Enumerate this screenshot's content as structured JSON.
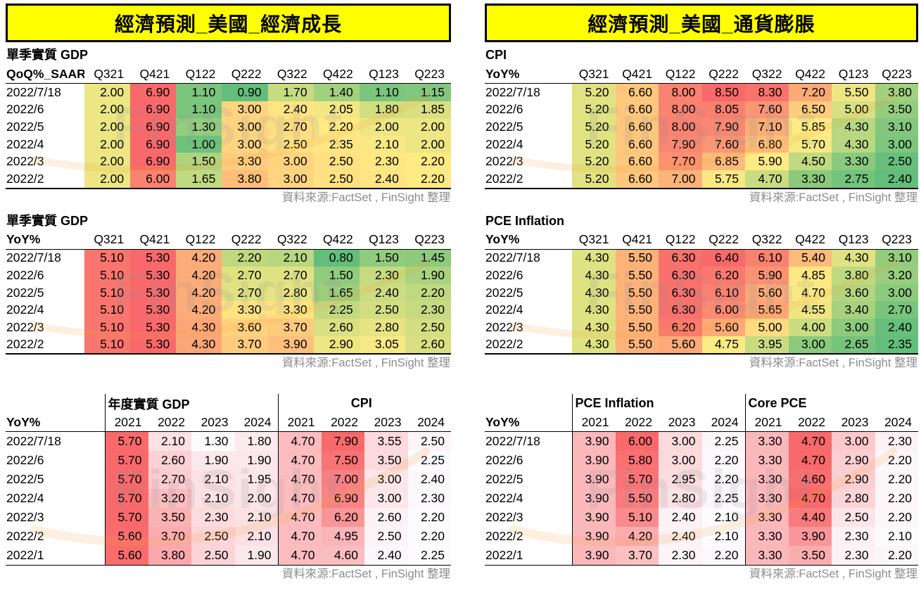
{
  "banner_left": "經濟預測_美國_經濟成長",
  "banner_right": "經濟預測_美國_通貨膨脹",
  "source_note": "資料來源:FactSet , FinSight 整理",
  "watermark_text": "FinSight",
  "colors": {
    "banner_bg": "#FFFF00",
    "banner_border": "#000000",
    "heat3_min_green": "#63BE7B",
    "heat3_mid_yellow": "#FFEB84",
    "heat3_max_red": "#F8696B",
    "heat2_min_white": "#FCFCFF",
    "heat2_max_red": "#F8696B",
    "source_text": "#8C8C8C",
    "watermark_arc": "#F2A33C"
  },
  "quarter_columns": [
    "Q321",
    "Q421",
    "Q122",
    "Q222",
    "Q322",
    "Q422",
    "Q123",
    "Q223"
  ],
  "year_columns": [
    "2021",
    "2022",
    "2023",
    "2024"
  ],
  "quarterly_tables": [
    {
      "id": "gdp-qoq",
      "panel": "left",
      "title": "單季實質 GDP",
      "unit_label": "QoQ%_SAAR",
      "columns": [
        "Q321",
        "Q421",
        "Q122",
        "Q222",
        "Q322",
        "Q422",
        "Q123",
        "Q223"
      ],
      "rows": [
        {
          "label": "2022/7/18",
          "values": [
            "2.00",
            "6.90",
            "1.10",
            "0.90",
            "1.70",
            "1.40",
            "1.10",
            "1.15"
          ]
        },
        {
          "label": "2022/6",
          "values": [
            "2.00",
            "6.90",
            "1.10",
            "3.00",
            "2.40",
            "2.05",
            "1.80",
            "1.85"
          ]
        },
        {
          "label": "2022/5",
          "values": [
            "2.00",
            "6.90",
            "1.30",
            "3.00",
            "2.70",
            "2.20",
            "2.00",
            "2.00"
          ]
        },
        {
          "label": "2022/4",
          "values": [
            "2.00",
            "6.90",
            "1.00",
            "3.00",
            "2.50",
            "2.35",
            "2.10",
            "2.00"
          ]
        },
        {
          "label": "2022/3",
          "values": [
            "2.00",
            "6.90",
            "1.50",
            "3.30",
            "3.00",
            "2.50",
            "2.30",
            "2.20"
          ]
        },
        {
          "label": "2022/2",
          "values": [
            "2.00",
            "6.00",
            "1.65",
            "3.80",
            "3.00",
            "2.50",
            "2.40",
            "2.20"
          ]
        }
      ]
    },
    {
      "id": "gdp-yoy",
      "panel": "left",
      "title": "單季實質 GDP",
      "unit_label": "YoY%",
      "columns": [
        "Q321",
        "Q421",
        "Q122",
        "Q222",
        "Q322",
        "Q422",
        "Q123",
        "Q223"
      ],
      "rows": [
        {
          "label": "2022/7/18",
          "values": [
            "5.10",
            "5.30",
            "4.20",
            "2.20",
            "2.10",
            "0.80",
            "1.50",
            "1.45"
          ]
        },
        {
          "label": "2022/6",
          "values": [
            "5.10",
            "5.30",
            "4.20",
            "2.70",
            "2.70",
            "1.50",
            "2.30",
            "1.90"
          ]
        },
        {
          "label": "2022/5",
          "values": [
            "5.10",
            "5.30",
            "4.20",
            "2.70",
            "2.80",
            "1.65",
            "2.40",
            "2.20"
          ]
        },
        {
          "label": "2022/4",
          "values": [
            "5.10",
            "5.30",
            "4.20",
            "3.30",
            "3.30",
            "2.25",
            "2.50",
            "2.30"
          ]
        },
        {
          "label": "2022/3",
          "values": [
            "5.10",
            "5.30",
            "4.30",
            "3.60",
            "3.70",
            "2.60",
            "2.80",
            "2.50"
          ]
        },
        {
          "label": "2022/2",
          "values": [
            "5.10",
            "5.30",
            "4.30",
            "3.70",
            "3.90",
            "2.90",
            "3.05",
            "2.60"
          ]
        }
      ]
    },
    {
      "id": "cpi-yoy",
      "panel": "right",
      "title": "CPI",
      "unit_label": "YoY%",
      "columns": [
        "Q321",
        "Q421",
        "Q122",
        "Q222",
        "Q322",
        "Q422",
        "Q123",
        "Q223"
      ],
      "rows": [
        {
          "label": "2022/7/18",
          "values": [
            "5.20",
            "6.60",
            "8.00",
            "8.50",
            "8.30",
            "7.20",
            "5.50",
            "3.80"
          ]
        },
        {
          "label": "2022/6",
          "values": [
            "5.20",
            "6.60",
            "8.00",
            "8.05",
            "7.60",
            "6.50",
            "5.00",
            "3.50"
          ]
        },
        {
          "label": "2022/5",
          "values": [
            "5.20",
            "6.60",
            "8.00",
            "7.90",
            "7.10",
            "5.85",
            "4.30",
            "3.10"
          ]
        },
        {
          "label": "2022/4",
          "values": [
            "5.20",
            "6.60",
            "7.90",
            "7.60",
            "6.80",
            "5.70",
            "4.30",
            "3.00"
          ]
        },
        {
          "label": "2022/3",
          "values": [
            "5.20",
            "6.60",
            "7.70",
            "6.85",
            "5.90",
            "4.50",
            "3.30",
            "2.50"
          ]
        },
        {
          "label": "2022/2",
          "values": [
            "5.20",
            "6.60",
            "7.00",
            "5.75",
            "4.70",
            "3.30",
            "2.75",
            "2.40"
          ]
        }
      ]
    },
    {
      "id": "pce-yoy",
      "panel": "right",
      "title": "PCE Inflation",
      "unit_label": "YoY%",
      "columns": [
        "Q321",
        "Q421",
        "Q122",
        "Q222",
        "Q322",
        "Q422",
        "Q123",
        "Q223"
      ],
      "rows": [
        {
          "label": "2022/7/18",
          "values": [
            "4.30",
            "5.50",
            "6.30",
            "6.40",
            "6.10",
            "5.40",
            "4.30",
            "3.10"
          ]
        },
        {
          "label": "2022/6",
          "values": [
            "4.30",
            "5.50",
            "6.30",
            "6.20",
            "5.90",
            "4.85",
            "3.80",
            "3.20"
          ]
        },
        {
          "label": "2022/5",
          "values": [
            "4.30",
            "5.50",
            "6.30",
            "6.10",
            "5.60",
            "4.70",
            "3.60",
            "3.00"
          ]
        },
        {
          "label": "2022/4",
          "values": [
            "4.30",
            "5.50",
            "6.30",
            "6.00",
            "5.65",
            "4.55",
            "3.40",
            "2.70"
          ]
        },
        {
          "label": "2022/3",
          "values": [
            "4.30",
            "5.50",
            "6.20",
            "5.60",
            "5.00",
            "4.00",
            "3.00",
            "2.40"
          ]
        },
        {
          "label": "2022/2",
          "values": [
            "4.30",
            "5.50",
            "5.60",
            "4.75",
            "3.95",
            "3.00",
            "2.65",
            "2.35"
          ]
        }
      ]
    }
  ],
  "annual_tables": [
    {
      "id": "annual-growth-cpi",
      "panel": "left",
      "unit_label": "YoY%",
      "groups": [
        {
          "title": "年度實質 GDP",
          "title_align": "left",
          "columns": [
            "2021",
            "2022",
            "2023",
            "2024"
          ]
        },
        {
          "title": "CPI",
          "title_align": "center",
          "columns": [
            "2021",
            "2022",
            "2023",
            "2024"
          ]
        }
      ],
      "rows": [
        {
          "label": "2022/7/18",
          "values": [
            "5.70",
            "2.10",
            "1.30",
            "1.80",
            "4.70",
            "7.90",
            "3.55",
            "2.50"
          ]
        },
        {
          "label": "2022/6",
          "values": [
            "5.70",
            "2.60",
            "1.90",
            "1.90",
            "4.70",
            "7.50",
            "3.50",
            "2.25"
          ]
        },
        {
          "label": "2022/5",
          "values": [
            "5.70",
            "2.70",
            "2.10",
            "1.95",
            "4.70",
            "7.00",
            "3.00",
            "2.40"
          ]
        },
        {
          "label": "2022/4",
          "values": [
            "5.70",
            "3.20",
            "2.10",
            "2.00",
            "4.70",
            "6.90",
            "3.00",
            "2.30"
          ]
        },
        {
          "label": "2022/3",
          "values": [
            "5.70",
            "3.50",
            "2.30",
            "2.10",
            "4.70",
            "6.20",
            "2.60",
            "2.20"
          ]
        },
        {
          "label": "2022/2",
          "values": [
            "5.60",
            "3.70",
            "2.50",
            "2.10",
            "4.70",
            "4.95",
            "2.50",
            "2.20"
          ]
        },
        {
          "label": "2022/1",
          "values": [
            "5.60",
            "3.80",
            "2.50",
            "1.90",
            "4.70",
            "4.60",
            "2.40",
            "2.25"
          ]
        }
      ]
    },
    {
      "id": "annual-pce-corepce",
      "panel": "right",
      "unit_label": "YoY%",
      "groups": [
        {
          "title": "PCE Inflation",
          "title_align": "left",
          "columns": [
            "2021",
            "2022",
            "2023",
            "2024"
          ]
        },
        {
          "title": "Core PCE",
          "title_align": "left",
          "columns": [
            "2021",
            "2022",
            "2023",
            "2024"
          ]
        }
      ],
      "rows": [
        {
          "label": "2022/7/18",
          "values": [
            "3.90",
            "6.00",
            "3.00",
            "2.25",
            "3.30",
            "4.70",
            "3.00",
            "2.30"
          ]
        },
        {
          "label": "2022/6",
          "values": [
            "3.90",
            "5.80",
            "3.00",
            "2.20",
            "3.30",
            "4.70",
            "2.90",
            "2.20"
          ]
        },
        {
          "label": "2022/5",
          "values": [
            "3.90",
            "5.70",
            "2.95",
            "2.20",
            "3.30",
            "4.60",
            "2.90",
            "2.20"
          ]
        },
        {
          "label": "2022/4",
          "values": [
            "3.90",
            "5.50",
            "2.80",
            "2.25",
            "3.30",
            "4.70",
            "2.80",
            "2.20"
          ]
        },
        {
          "label": "2022/3",
          "values": [
            "3.90",
            "5.10",
            "2.40",
            "2.10",
            "3.30",
            "4.40",
            "2.50",
            "2.20"
          ]
        },
        {
          "label": "2022/2",
          "values": [
            "3.90",
            "4.20",
            "2.40",
            "2.10",
            "3.30",
            "3.90",
            "2.30",
            "2.10"
          ]
        },
        {
          "label": "2022/1",
          "values": [
            "3.90",
            "3.70",
            "2.30",
            "2.20",
            "3.30",
            "3.50",
            "2.30",
            "2.20"
          ]
        }
      ]
    }
  ]
}
